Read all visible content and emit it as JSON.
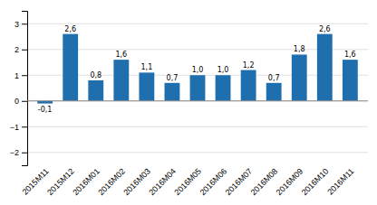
{
  "chart_data": {
    "type": "bar",
    "categories": [
      "2015M11",
      "2015M12",
      "2016M01",
      "2016M02",
      "2016M03",
      "2016M04",
      "2016M05",
      "2016M06",
      "2016M07",
      "2016M08",
      "2016M09",
      "2016M10",
      "2016M11"
    ],
    "values": [
      -0.1,
      2.6,
      0.8,
      1.6,
      1.1,
      0.7,
      1.0,
      1.0,
      1.2,
      0.7,
      1.8,
      2.6,
      1.6
    ],
    "value_labels": [
      "-0,1",
      "2,6",
      "0,8",
      "1,6",
      "1,1",
      "0,7",
      "1,0",
      "1,0",
      "1,2",
      "0,7",
      "1,8",
      "2,6",
      "1,6"
    ],
    "color": "#1F6EAE",
    "ylim": [
      -2.5,
      3.5
    ],
    "yticks": [
      -2,
      -1,
      0,
      1,
      2,
      3
    ],
    "grid": true,
    "data_labels": true
  }
}
